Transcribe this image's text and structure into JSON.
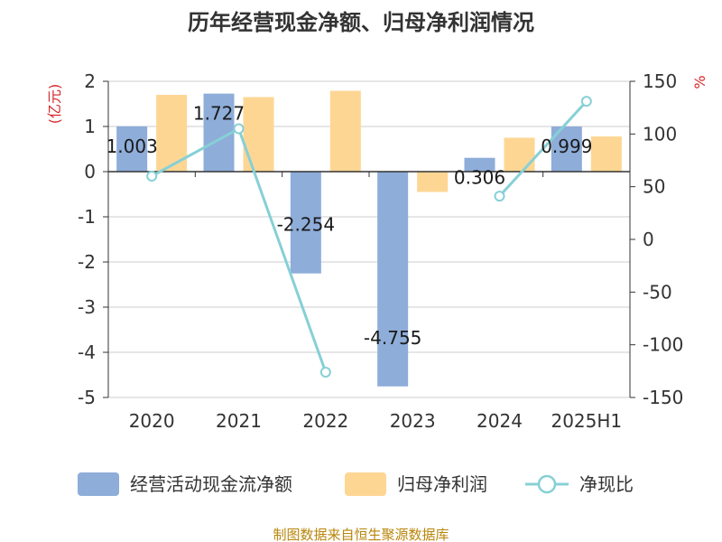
{
  "chart_data": {
    "type": "bar",
    "title": "历年经营现金净额、归母净利润情况",
    "left_unit": "(亿元)",
    "right_unit": "%",
    "categories": [
      "2020",
      "2021",
      "2022",
      "2023",
      "2024",
      "2025H1"
    ],
    "left_ticks": [
      "2",
      "1",
      "0",
      "-1",
      "-2",
      "-3",
      "-4",
      "-5"
    ],
    "right_ticks": [
      "150",
      "100",
      "50",
      "0",
      "-50",
      "-100",
      "-150"
    ],
    "ylim_left": [
      -5,
      2
    ],
    "ylim_right": [
      -150,
      150
    ],
    "series": [
      {
        "name": "经营活动现金流净额",
        "type": "bar",
        "axis": "left",
        "color": "#8eadd9",
        "values": [
          1.003,
          1.727,
          -2.254,
          -4.755,
          0.306,
          0.999
        ],
        "labels": [
          "1.003",
          "1.727",
          "-2.254",
          "-4.755",
          "0.306",
          "0.999"
        ]
      },
      {
        "name": "归母净利润",
        "type": "bar",
        "axis": "left",
        "color": "#fed694",
        "values": [
          1.7,
          1.65,
          1.79,
          -0.45,
          0.75,
          0.78
        ]
      },
      {
        "name": "净现比",
        "type": "line",
        "axis": "right",
        "color": "#86d0d6",
        "values": [
          60,
          105,
          -126,
          null,
          41,
          131
        ]
      }
    ],
    "legend_position": "bottom",
    "grid": true
  },
  "footer": {
    "source": "制图数据来自恒生聚源数据库"
  }
}
